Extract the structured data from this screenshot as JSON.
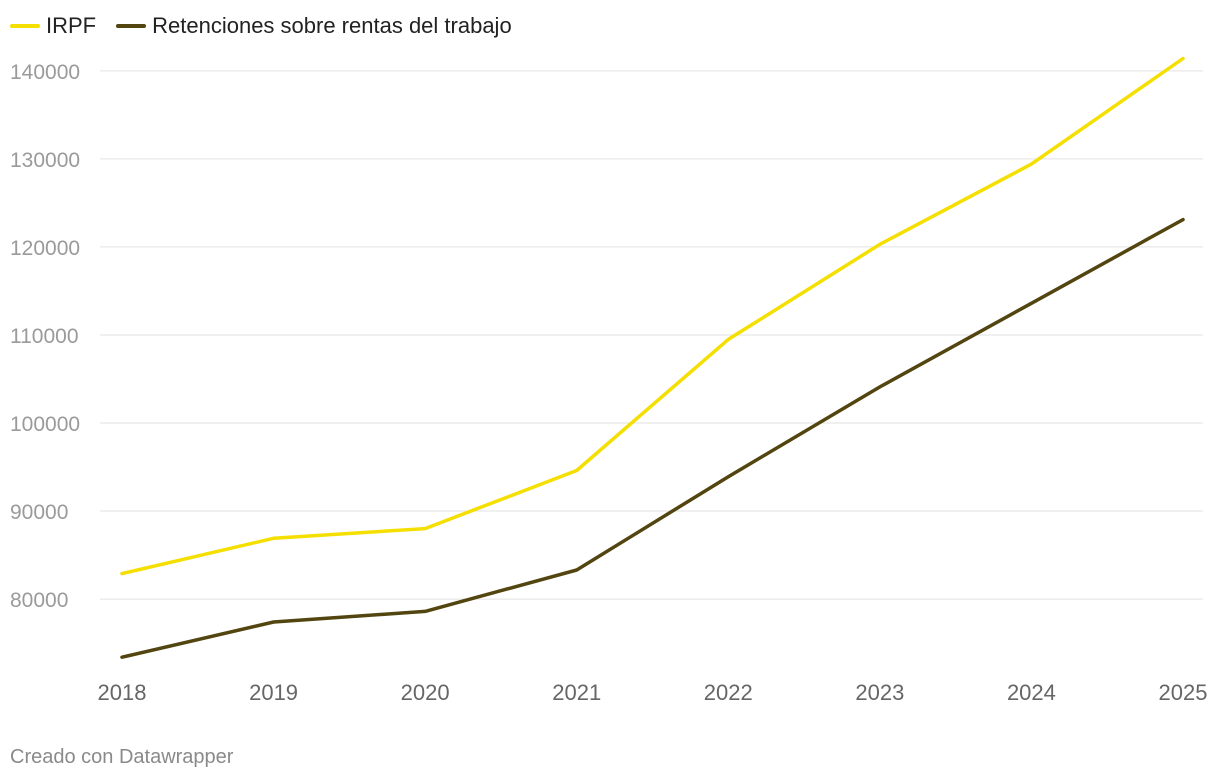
{
  "chart_data": {
    "type": "line",
    "categories": [
      "2018",
      "2019",
      "2020",
      "2021",
      "2022",
      "2023",
      "2024",
      "2025"
    ],
    "series": [
      {
        "name": "IRPF",
        "color": "#f5df00",
        "values": [
          82900,
          86900,
          88000,
          94600,
          109500,
          120300,
          129400,
          141400
        ]
      },
      {
        "name": "Retenciones sobre rentas del trabajo",
        "color": "#524510",
        "values": [
          73400,
          77400,
          78600,
          83300,
          93900,
          104100,
          113600,
          123100
        ]
      }
    ],
    "yticks": [
      80000,
      90000,
      100000,
      110000,
      120000,
      130000,
      140000
    ],
    "ytick_labels": [
      "80000",
      "90000",
      "100000",
      "110000",
      "120000",
      "130000",
      "140000"
    ],
    "ylim": [
      72400,
      143500
    ],
    "title": "",
    "xlabel": "",
    "ylabel": "",
    "grid": true,
    "legend_position": "top-left"
  },
  "footer": {
    "credit": "Creado con Datawrapper"
  }
}
